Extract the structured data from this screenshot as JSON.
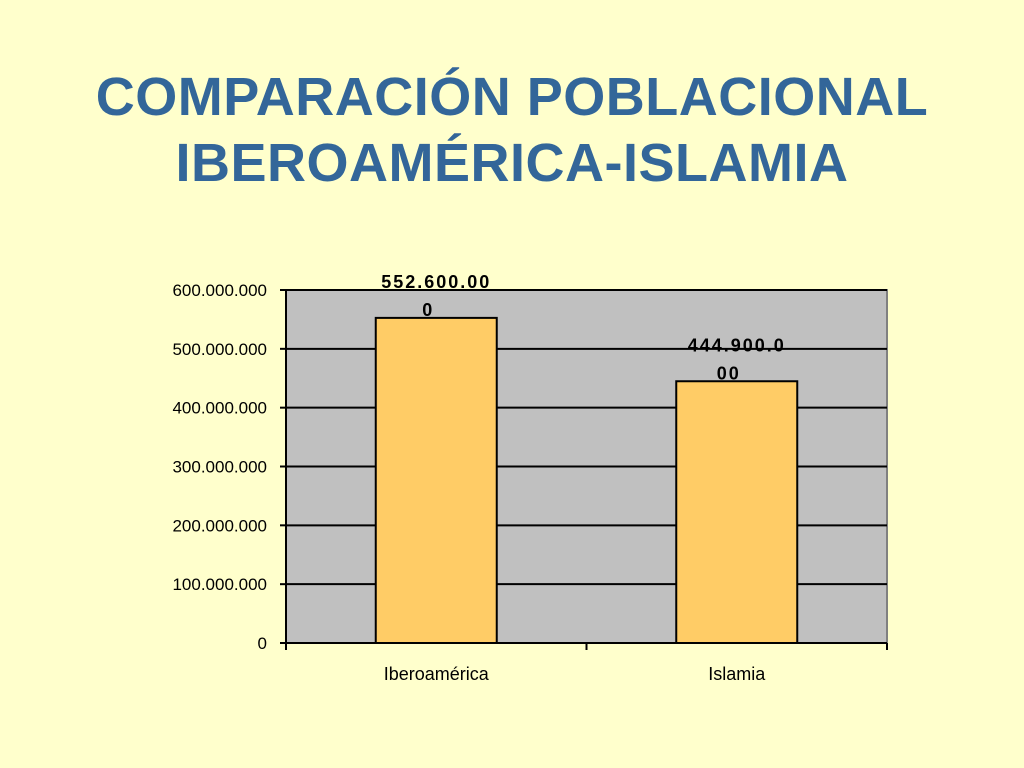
{
  "slide": {
    "title_line1": "COMPARACIÓN POBLACIONAL",
    "title_line2": "IBEROAMÉRICA-ISLAMIA"
  },
  "colors": {
    "background": "#ffffcc",
    "title": "#336699",
    "plot_area": "#c0c0c0",
    "bar_fill": "#ffcc66",
    "bar_stroke": "#000000",
    "gridline": "#000000"
  },
  "chart_data": {
    "type": "bar",
    "title": "",
    "xlabel": "",
    "ylabel": "",
    "categories": [
      "Iberoamérica",
      "Islamia"
    ],
    "values": [
      552600000,
      444900000
    ],
    "data_labels": [
      [
        "552.600.00",
        "0"
      ],
      [
        "444.900.0",
        "00"
      ]
    ],
    "ylim": [
      0,
      600000000
    ],
    "yticks": [
      0,
      100000000,
      200000000,
      300000000,
      400000000,
      500000000,
      600000000
    ],
    "ytick_labels": [
      "0",
      "100.000.000",
      "200.000.000",
      "300.000.000",
      "400.000.000",
      "500.000.000",
      "600.000.000"
    ],
    "grid": true,
    "legend": "none"
  }
}
